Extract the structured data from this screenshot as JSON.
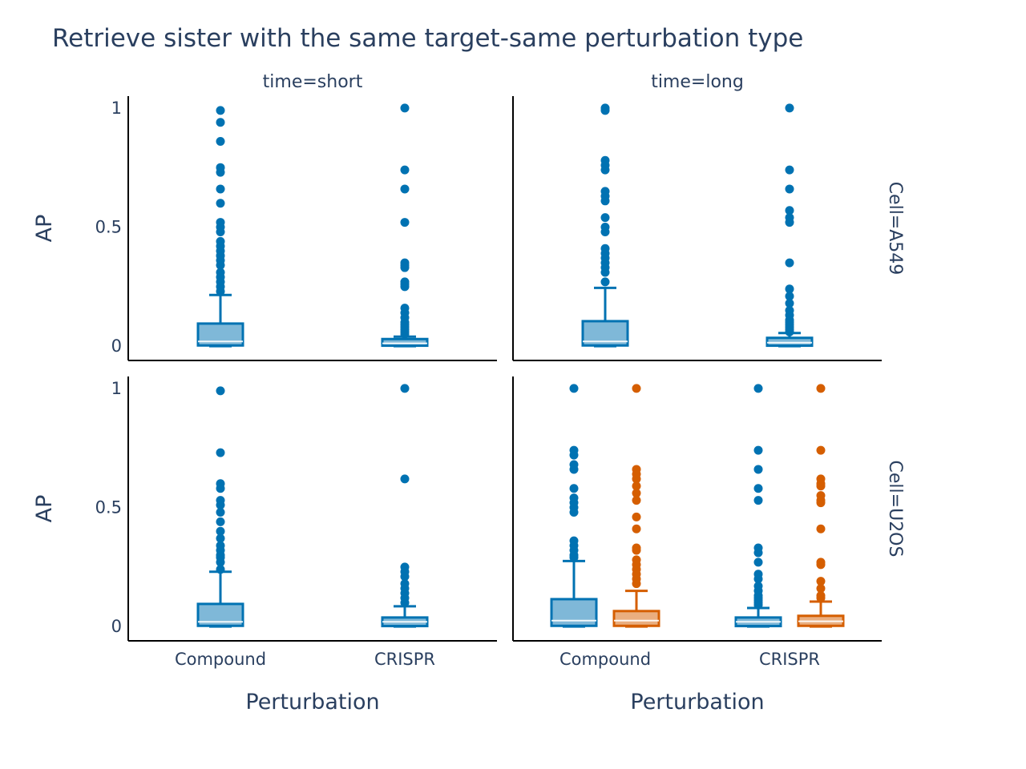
{
  "chart_data": {
    "type": "box",
    "title": "Retrieve sister with the same target-same perturbation type",
    "xlabel": "Perturbation",
    "ylabel": "AP",
    "categories": [
      "Compound",
      "CRISPR"
    ],
    "column_facets": [
      "time=short",
      "time=long"
    ],
    "row_facets": [
      "Cell=A549",
      "Cell=U2OS"
    ],
    "y_ticks": [
      0,
      0.5,
      1
    ],
    "y_tick_labels": [
      "0",
      "0.5",
      "1"
    ],
    "ylim": [
      -0.06,
      1.05
    ],
    "colors": {
      "group_a": "#0072B2",
      "group_b": "#D55E00"
    },
    "legend": "none",
    "grid": false,
    "panels": [
      {
        "row": 0,
        "col": 0,
        "boxes": [
          {
            "category": "Compound",
            "group": "group_a",
            "min": 0,
            "q1": 0.003,
            "median": 0.02,
            "q3": 0.095,
            "max": 0.215,
            "outliers": [
              0.23,
              0.25,
              0.27,
              0.29,
              0.31,
              0.34,
              0.36,
              0.38,
              0.4,
              0.42,
              0.44,
              0.48,
              0.5,
              0.52,
              0.6,
              0.66,
              0.73,
              0.75,
              0.86,
              0.94,
              0.99
            ]
          },
          {
            "category": "CRISPR",
            "group": "group_a",
            "min": 0,
            "q1": 0.002,
            "median": 0.012,
            "q3": 0.03,
            "max": 0.04,
            "outliers": [
              0.05,
              0.06,
              0.07,
              0.08,
              0.09,
              0.1,
              0.12,
              0.14,
              0.16,
              0.25,
              0.26,
              0.27,
              0.33,
              0.34,
              0.35,
              0.52,
              0.66,
              0.74,
              1.0
            ]
          }
        ]
      },
      {
        "row": 0,
        "col": 1,
        "boxes": [
          {
            "category": "Compound",
            "group": "group_a",
            "min": 0,
            "q1": 0.003,
            "median": 0.02,
            "q3": 0.105,
            "max": 0.245,
            "outliers": [
              0.27,
              0.31,
              0.33,
              0.35,
              0.37,
              0.39,
              0.41,
              0.48,
              0.5,
              0.54,
              0.61,
              0.63,
              0.65,
              0.74,
              0.76,
              0.78,
              0.99,
              1.0
            ]
          },
          {
            "category": "CRISPR",
            "group": "group_a",
            "min": 0,
            "q1": 0.002,
            "median": 0.015,
            "q3": 0.035,
            "max": 0.055,
            "outliers": [
              0.06,
              0.07,
              0.08,
              0.09,
              0.1,
              0.11,
              0.13,
              0.15,
              0.18,
              0.21,
              0.24,
              0.35,
              0.52,
              0.54,
              0.57,
              0.66,
              0.74,
              1.0
            ]
          }
        ]
      },
      {
        "row": 1,
        "col": 0,
        "boxes": [
          {
            "category": "Compound",
            "group": "group_a",
            "min": 0,
            "q1": 0.003,
            "median": 0.02,
            "q3": 0.095,
            "max": 0.23,
            "outliers": [
              0.24,
              0.27,
              0.29,
              0.3,
              0.32,
              0.34,
              0.37,
              0.4,
              0.44,
              0.48,
              0.51,
              0.53,
              0.58,
              0.6,
              0.73,
              0.99
            ]
          },
          {
            "category": "CRISPR",
            "group": "group_a",
            "min": 0,
            "q1": 0.002,
            "median": 0.02,
            "q3": 0.038,
            "max": 0.085,
            "outliers": [
              0.1,
              0.12,
              0.14,
              0.16,
              0.18,
              0.21,
              0.23,
              0.25,
              0.62,
              1.0
            ]
          }
        ]
      },
      {
        "row": 1,
        "col": 1,
        "boxes": [
          {
            "category": "Compound",
            "group": "group_a",
            "min": 0,
            "q1": 0.003,
            "median": 0.025,
            "q3": 0.115,
            "max": 0.275,
            "outliers": [
              0.29,
              0.3,
              0.32,
              0.34,
              0.36,
              0.48,
              0.5,
              0.52,
              0.54,
              0.58,
              0.66,
              0.68,
              0.72,
              0.74,
              1.0
            ]
          },
          {
            "category": "Compound",
            "group": "group_b",
            "min": 0,
            "q1": 0.003,
            "median": 0.025,
            "q3": 0.065,
            "max": 0.15,
            "outliers": [
              0.18,
              0.2,
              0.22,
              0.24,
              0.26,
              0.28,
              0.32,
              0.33,
              0.41,
              0.46,
              0.53,
              0.56,
              0.59,
              0.62,
              0.64,
              0.66,
              1.0
            ]
          },
          {
            "category": "CRISPR",
            "group": "group_a",
            "min": 0,
            "q1": 0.002,
            "median": 0.02,
            "q3": 0.038,
            "max": 0.078,
            "outliers": [
              0.09,
              0.1,
              0.11,
              0.12,
              0.13,
              0.15,
              0.17,
              0.2,
              0.22,
              0.27,
              0.31,
              0.33,
              0.53,
              0.58,
              0.66,
              0.74,
              1.0
            ]
          },
          {
            "category": "CRISPR",
            "group": "group_b",
            "min": 0,
            "q1": 0.003,
            "median": 0.022,
            "q3": 0.045,
            "max": 0.105,
            "outliers": [
              0.12,
              0.13,
              0.16,
              0.19,
              0.26,
              0.27,
              0.41,
              0.52,
              0.53,
              0.55,
              0.59,
              0.6,
              0.62,
              0.74,
              1.0
            ]
          }
        ]
      }
    ]
  }
}
